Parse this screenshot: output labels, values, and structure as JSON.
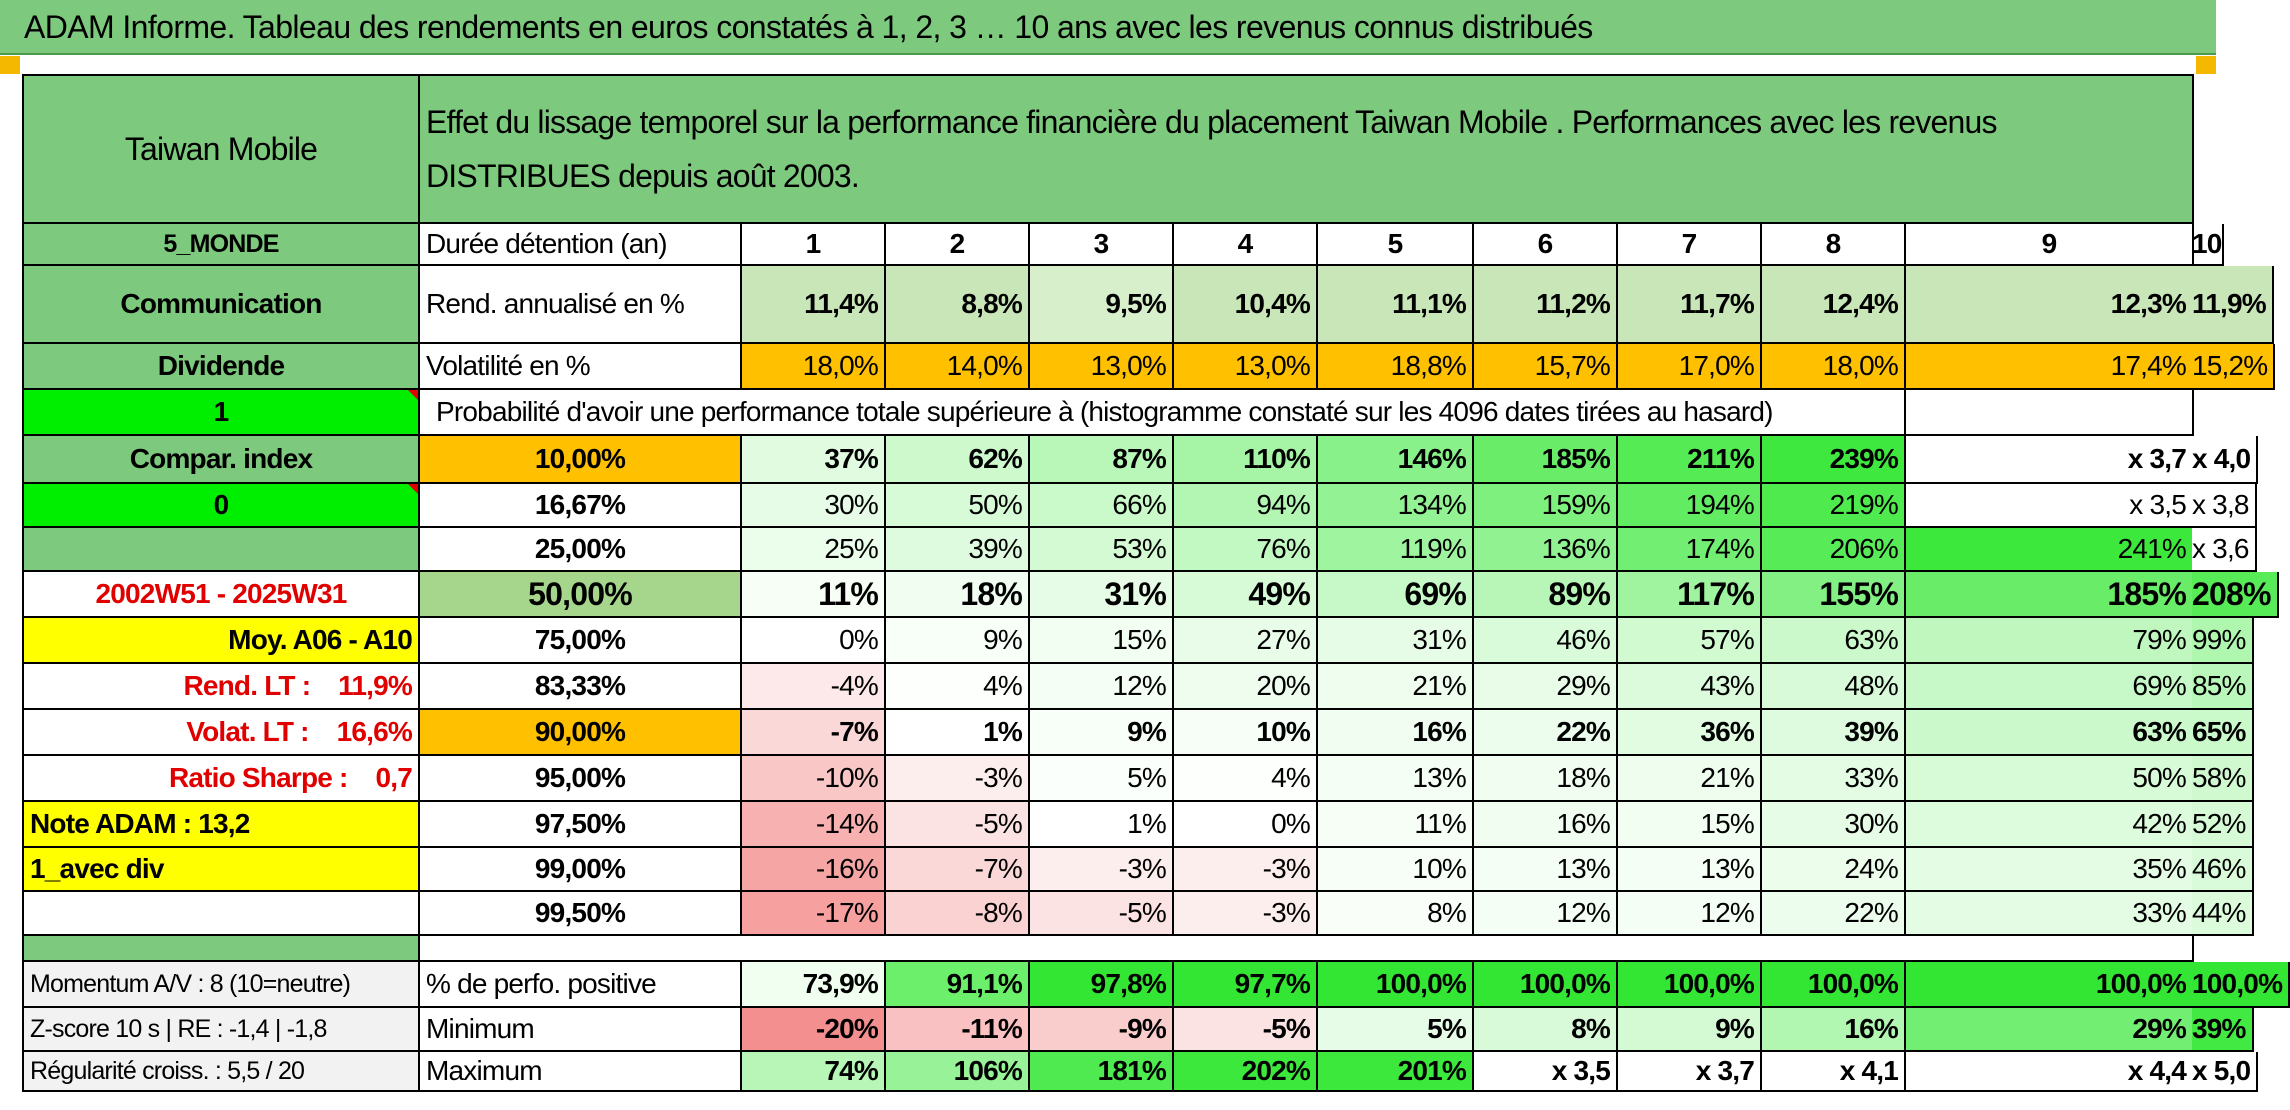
{
  "page": {
    "title": "ADAM Informe. Tableau des rendements en euros constatés à 1, 2, 3 … 10 ans avec les revenus connus distribués"
  },
  "header": {
    "name": "Taiwan Mobile",
    "description": "Effet du lissage temporel sur la performance financière du placement Taiwan Mobile . Performances avec les revenus DISTRIBUES depuis août 2003."
  },
  "side": {
    "zone": "5_MONDE",
    "sector": "Communication",
    "type": "Dividende",
    "flag1": "1",
    "compar_index": "Compar. index",
    "flag0": "0",
    "period": "2002W51 - 2025W31",
    "moy": "Moy. A06 - A10",
    "rend_lt": "Rend. LT :    11,9%",
    "volat_lt": "Volat. LT :    16,6%",
    "sharpe": "Ratio Sharpe :    0,7",
    "note": "Note ADAM : 13,2",
    "variant": "1_avec div"
  },
  "table": {
    "duration_label": "Durée détention (an)",
    "years": [
      "1",
      "2",
      "3",
      "4",
      "5",
      "6",
      "7",
      "8",
      "9",
      "10"
    ],
    "rend_label": "Rend. annualisé en %",
    "rend": [
      "11,4%",
      "8,8%",
      "9,5%",
      "10,4%",
      "11,1%",
      "11,2%",
      "11,7%",
      "12,4%",
      "12,3%",
      "11,9%"
    ],
    "vol_label": "Volatilité en %",
    "vol": [
      "18,0%",
      "14,0%",
      "13,0%",
      "13,0%",
      "18,8%",
      "15,7%",
      "17,0%",
      "18,0%",
      "17,4%",
      "15,2%"
    ],
    "proba_label": "Probabilité d'avoir une performance totale supérieure à (histogramme constaté sur les 4096 dates tirées au hasard)",
    "rows": [
      {
        "p": "10,00%",
        "values": [
          "37%",
          "62%",
          "87%",
          "110%",
          "146%",
          "185%",
          "211%",
          "239%",
          "x 3,7",
          "x 4,0"
        ]
      },
      {
        "p": "16,67%",
        "values": [
          "30%",
          "50%",
          "66%",
          "94%",
          "134%",
          "159%",
          "194%",
          "219%",
          "x 3,5",
          "x 3,8"
        ]
      },
      {
        "p": "25,00%",
        "values": [
          "25%",
          "39%",
          "53%",
          "76%",
          "119%",
          "136%",
          "174%",
          "206%",
          "241%",
          "x 3,6"
        ]
      },
      {
        "p": "50,00%",
        "values": [
          "11%",
          "18%",
          "31%",
          "49%",
          "69%",
          "89%",
          "117%",
          "155%",
          "185%",
          "208%"
        ]
      },
      {
        "p": "75,00%",
        "values": [
          "0%",
          "9%",
          "15%",
          "27%",
          "31%",
          "46%",
          "57%",
          "63%",
          "79%",
          "99%"
        ]
      },
      {
        "p": "83,33%",
        "values": [
          "-4%",
          "4%",
          "12%",
          "20%",
          "21%",
          "29%",
          "43%",
          "48%",
          "69%",
          "85%"
        ]
      },
      {
        "p": "90,00%",
        "values": [
          "-7%",
          "1%",
          "9%",
          "10%",
          "16%",
          "22%",
          "36%",
          "39%",
          "63%",
          "65%"
        ]
      },
      {
        "p": "95,00%",
        "values": [
          "-10%",
          "-3%",
          "5%",
          "4%",
          "13%",
          "18%",
          "21%",
          "33%",
          "50%",
          "58%"
        ]
      },
      {
        "p": "97,50%",
        "values": [
          "-14%",
          "-5%",
          "1%",
          "0%",
          "11%",
          "16%",
          "15%",
          "30%",
          "42%",
          "52%"
        ]
      },
      {
        "p": "99,00%",
        "values": [
          "-16%",
          "-7%",
          "-3%",
          "-3%",
          "10%",
          "13%",
          "13%",
          "24%",
          "35%",
          "46%"
        ]
      },
      {
        "p": "99,50%",
        "values": [
          "-17%",
          "-8%",
          "-5%",
          "-3%",
          "8%",
          "12%",
          "12%",
          "22%",
          "33%",
          "44%"
        ]
      }
    ],
    "bottom": [
      {
        "side": "Momentum A/V : 8 (10=neutre)",
        "label": "% de perfo. positive",
        "values": [
          "73,9%",
          "91,1%",
          "97,8%",
          "97,7%",
          "100,0%",
          "100,0%",
          "100,0%",
          "100,0%",
          "100,0%",
          "100,0%"
        ]
      },
      {
        "side": "Z-score 10 s | RE : -1,4 | -1,8",
        "label": "Minimum",
        "values": [
          "-20%",
          "-11%",
          "-9%",
          "-5%",
          "5%",
          "8%",
          "9%",
          "16%",
          "29%",
          "39%"
        ]
      },
      {
        "side": "Régularité croiss. : 5,5 / 20",
        "label": "Maximum",
        "values": [
          "74%",
          "106%",
          "181%",
          "202%",
          "201%",
          "x 3,5",
          "x 3,7",
          "x 4,1",
          "x 4,4",
          "x 5,0"
        ]
      }
    ]
  },
  "colors": {
    "header_green": "#7dc97d",
    "bright_green": "#00ee00",
    "orange": "#ffc000",
    "yellow": "#ffff00",
    "red_text": "#e00000"
  }
}
